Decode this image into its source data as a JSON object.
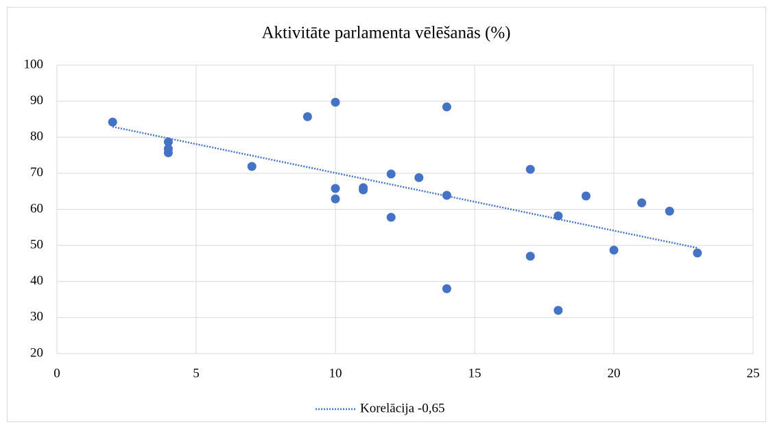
{
  "chart_data": {
    "type": "scatter",
    "title": "Aktivitāte parlamenta vēlēšanās (%)",
    "color": "#4472c4",
    "x": [
      2,
      4,
      4,
      4,
      7,
      9,
      10,
      10,
      10,
      11,
      11,
      12,
      12,
      13,
      14,
      14,
      14,
      17,
      17,
      18,
      18,
      19,
      20,
      21,
      22,
      23
    ],
    "y": [
      84.2,
      78.7,
      76.8,
      75.7,
      71.9,
      85.7,
      89.7,
      65.8,
      62.9,
      66.0,
      65.4,
      69.8,
      57.8,
      68.8,
      88.4,
      63.9,
      38.0,
      71.1,
      47.0,
      58.2,
      32.0,
      63.7,
      48.7,
      61.8,
      59.5,
      47.9
    ],
    "trendline": {
      "name": "Korelācija -0,65",
      "color": "#4472c4",
      "x": [
        2,
        23
      ],
      "y": [
        82.9,
        49.3
      ]
    },
    "xlim": [
      0,
      25
    ],
    "xticks": [
      0,
      5,
      10,
      15,
      20,
      25
    ],
    "ylim": [
      20,
      100
    ],
    "yticks": [
      20,
      30,
      40,
      50,
      60,
      70,
      80,
      90,
      100
    ],
    "grid": true,
    "legend": "bottom"
  }
}
